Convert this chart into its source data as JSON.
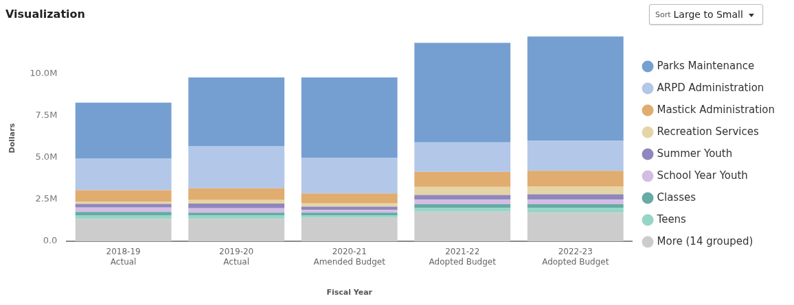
{
  "chart_data": {
    "type": "bar",
    "title": "Visualization",
    "xlabel": "Fiscal Year",
    "ylabel": "Dollars",
    "categories": [
      "2018-19\nActual",
      "2019-20\nActual",
      "2020-21\nAmended Budget",
      "2021-22\nAdopted Budget",
      "2022-23\nAdopted Budget"
    ],
    "stacked": true,
    "series": [
      {
        "name": "More (14 grouped)",
        "color": "#cccccc",
        "values": [
          1.34,
          1.34,
          1.4,
          1.77,
          1.71
        ]
      },
      {
        "name": "Teens",
        "color": "#96d6c6",
        "values": [
          0.21,
          0.19,
          0.15,
          0.21,
          0.27
        ]
      },
      {
        "name": "Classes",
        "color": "#66aba5",
        "values": [
          0.2,
          0.18,
          0.16,
          0.24,
          0.24
        ]
      },
      {
        "name": "School Year Youth",
        "color": "#d4bde3",
        "values": [
          0.26,
          0.26,
          0.16,
          0.26,
          0.26
        ]
      },
      {
        "name": "Summer Youth",
        "color": "#8f86bd",
        "values": [
          0.22,
          0.28,
          0.19,
          0.28,
          0.32
        ]
      },
      {
        "name": "Recreation Services",
        "color": "#e5d5a6",
        "values": [
          0.14,
          0.21,
          0.2,
          0.48,
          0.46
        ]
      },
      {
        "name": "Mastick Administration",
        "color": "#e0ac70",
        "values": [
          0.68,
          0.7,
          0.59,
          0.9,
          0.94
        ]
      },
      {
        "name": "ARPD Administration",
        "color": "#b3c7e8",
        "values": [
          1.9,
          2.52,
          2.12,
          1.76,
          1.79
        ]
      },
      {
        "name": "Parks Maintenance",
        "color": "#759fd0",
        "values": [
          3.32,
          4.09,
          4.8,
          5.94,
          6.23
        ]
      }
    ],
    "yticks": [
      {
        "value": 0,
        "label": "0.0"
      },
      {
        "value": 2.5,
        "label": "2.5M"
      },
      {
        "value": 5,
        "label": "5.0M"
      },
      {
        "value": 7.5,
        "label": "7.5M"
      },
      {
        "value": 10,
        "label": "10.0M"
      }
    ],
    "ylim": [
      0,
      12.3
    ],
    "grid": false,
    "legend": "right",
    "annotations": [
      "Sort",
      "Large to Small"
    ]
  }
}
